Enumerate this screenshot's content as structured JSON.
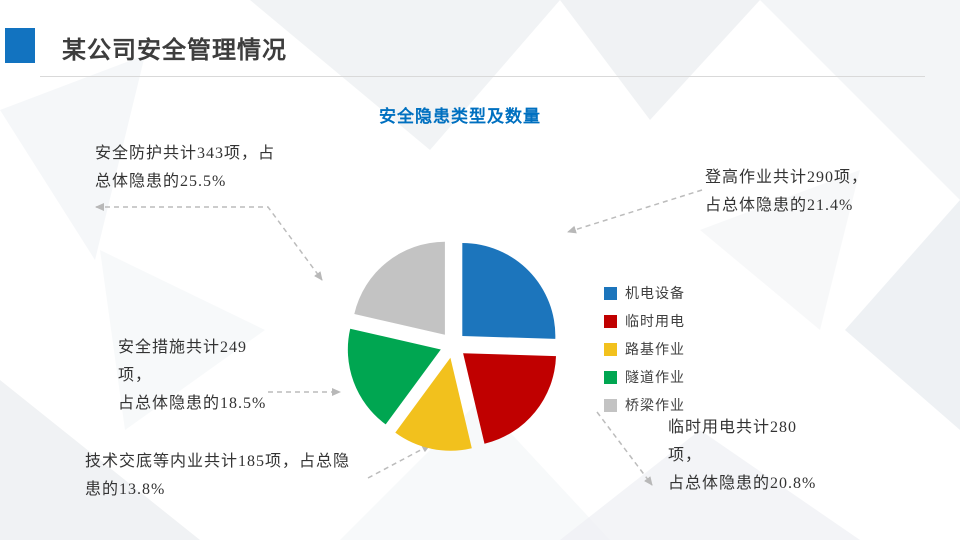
{
  "slide": {
    "title": "某公司安全管理情况",
    "chart_title": "安全隐患类型及数量"
  },
  "chart_data": {
    "type": "pie",
    "title": "安全隐患类型及数量",
    "legend_position": "right",
    "exploded": true,
    "slices": [
      {
        "key": "electromechanical",
        "label": "机电设备",
        "value": 25.5,
        "color": "#1c75bc"
      },
      {
        "key": "temporary-power",
        "label": "临时用电",
        "value": 20.8,
        "color": "#c00000"
      },
      {
        "key": "roadbed",
        "label": "路基作业",
        "value": 13.8,
        "color": "#f2c11d"
      },
      {
        "key": "tunnel",
        "label": "隧道作业",
        "value": 18.5,
        "color": "#00a651"
      },
      {
        "key": "bridge",
        "label": "桥梁作业",
        "value": 21.4,
        "color": "#c3c3c3"
      }
    ],
    "annotations": [
      {
        "text": "安全防护共计343项，占总体隐患的25.5%",
        "count": 343,
        "percent": 25.5
      },
      {
        "text": "登高作业共计290项，占总体隐患的21.4%",
        "count": 290,
        "percent": 21.4
      },
      {
        "text": "安全措施共计249项，占总体隐患的18.5%",
        "count": 249,
        "percent": 18.5
      },
      {
        "text": "技术交底等内业共计185项，占总隐患的13.8%",
        "count": 185,
        "percent": 13.8
      },
      {
        "text": "临时用电共计280项，占总体隐患的20.8%",
        "count": 280,
        "percent": 20.8
      }
    ]
  },
  "callouts": {
    "top_left": {
      "lines": [
        "安全防护共计343项，占",
        "总体隐患的25.5%"
      ]
    },
    "top_right": {
      "lines": [
        "登高作业共计290项，",
        "占总体隐患的21.4%"
      ]
    },
    "mid_left": {
      "lines": [
        "安全措施共计249",
        "项，",
        "占总体隐患的18.5%"
      ]
    },
    "bottom_left": {
      "lines": [
        "技术交底等内业共计185项，占总隐",
        "患的13.8%"
      ]
    },
    "bottom_right": {
      "lines": [
        "临时用电共计280",
        "项，",
        "占总体隐患的20.8%"
      ]
    }
  },
  "colors": {
    "accent_blue": "#1273c0",
    "chart_title_blue": "#0070c0",
    "connector_gray": "#bcbcbc"
  }
}
